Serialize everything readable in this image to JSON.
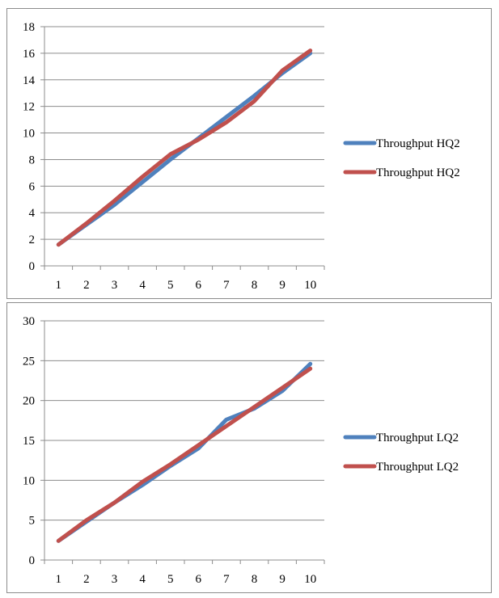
{
  "chart_data": [
    {
      "type": "line",
      "x": [
        1,
        2,
        3,
        4,
        5,
        6,
        7,
        8,
        9,
        10
      ],
      "ylim": [
        0,
        18
      ],
      "yticks": [
        0,
        2,
        4,
        6,
        8,
        10,
        12,
        14,
        16,
        18
      ],
      "grid": true,
      "legend_position": "right",
      "series": [
        {
          "name": "Throughput HQ2",
          "color": "#4f81bd",
          "values": [
            1.6,
            3.1,
            4.6,
            6.3,
            8.0,
            9.6,
            11.2,
            12.8,
            14.5,
            16.0
          ]
        },
        {
          "name": "Throughput HQ2",
          "color": "#c0504d",
          "values": [
            1.6,
            3.2,
            4.9,
            6.7,
            8.4,
            9.5,
            10.8,
            12.4,
            14.7,
            16.2
          ]
        }
      ]
    },
    {
      "type": "line",
      "x": [
        1,
        2,
        3,
        4,
        5,
        6,
        7,
        8,
        9,
        10
      ],
      "ylim": [
        0,
        30
      ],
      "yticks": [
        0,
        5,
        10,
        15,
        20,
        25,
        30
      ],
      "grid": true,
      "legend_position": "right",
      "series": [
        {
          "name": "Throughput LQ2",
          "color": "#4f81bd",
          "values": [
            2.4,
            4.8,
            7.2,
            9.4,
            11.8,
            14.0,
            17.6,
            19.0,
            21.2,
            24.6
          ]
        },
        {
          "name": "Throughput LQ2",
          "color": "#c0504d",
          "values": [
            2.4,
            5.0,
            7.2,
            9.8,
            12.0,
            14.4,
            16.8,
            19.2,
            21.6,
            24.0
          ]
        }
      ]
    }
  ]
}
